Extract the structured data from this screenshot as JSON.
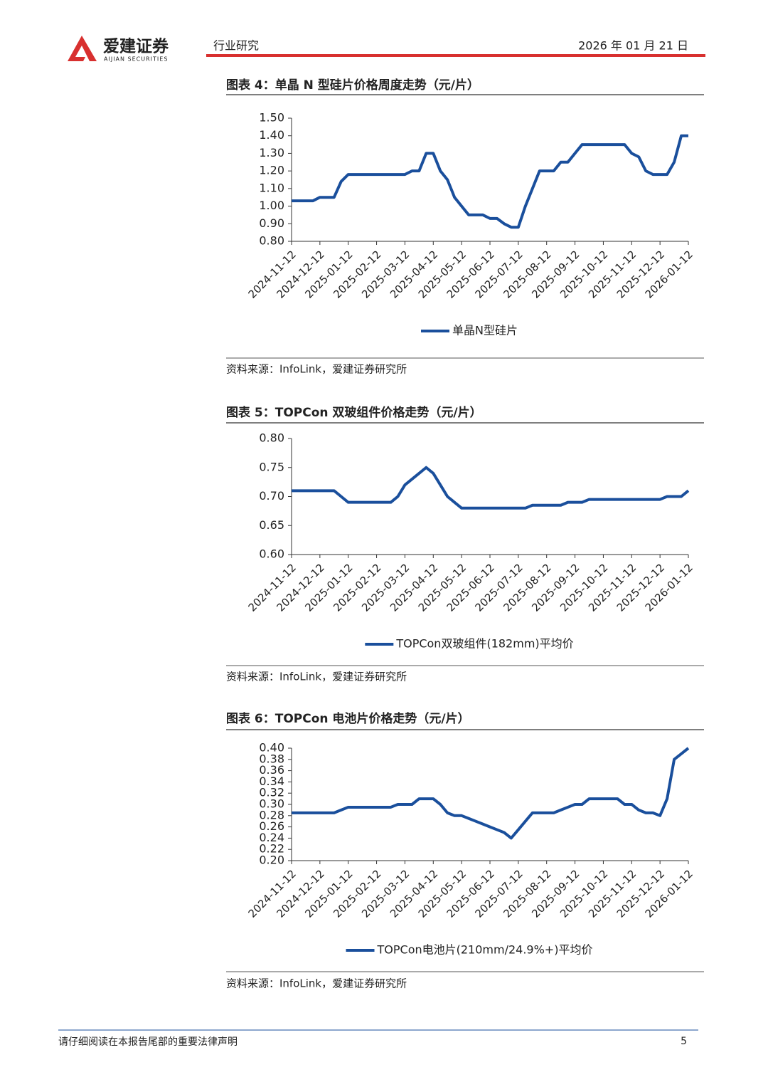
{
  "header": {
    "brand": "爱建证券",
    "brand_en": "AIJIAN SECURITIES",
    "section": "行业研究",
    "date": "2026 年 01 月 21 日"
  },
  "chart_data": [
    {
      "type": "line",
      "title": "图表 4：单晶 N 型硅片价格周度走势（元/片）",
      "categories": [
        "2024-11-12",
        null,
        null,
        null,
        "2024-12-12",
        null,
        null,
        null,
        "2025-01-12",
        null,
        null,
        null,
        "2025-02-12",
        null,
        null,
        null,
        "2025-03-12",
        null,
        null,
        null,
        "2025-04-12",
        null,
        null,
        null,
        "2025-05-12",
        null,
        null,
        null,
        "2025-06-12",
        null,
        null,
        null,
        "2025-07-12",
        null,
        null,
        null,
        "2025-08-12",
        null,
        null,
        null,
        "2025-09-12",
        null,
        null,
        null,
        "2025-10-12",
        null,
        null,
        null,
        "2025-11-12",
        null,
        null,
        null,
        "2025-12-12",
        null,
        null,
        null,
        "2026-01-12"
      ],
      "series": [
        {
          "name": "单晶N型硅片",
          "color": "#1a4f9c",
          "values": [
            1.03,
            1.03,
            1.03,
            1.03,
            1.05,
            1.05,
            1.05,
            1.14,
            1.18,
            1.18,
            1.18,
            1.18,
            1.18,
            1.18,
            1.18,
            1.18,
            1.18,
            1.2,
            1.2,
            1.3,
            1.3,
            1.2,
            1.15,
            1.05,
            1.0,
            0.95,
            0.95,
            0.95,
            0.93,
            0.93,
            0.9,
            0.88,
            0.88,
            1.0,
            1.1,
            1.2,
            1.2,
            1.2,
            1.25,
            1.25,
            1.3,
            1.35,
            1.35,
            1.35,
            1.35,
            1.35,
            1.35,
            1.35,
            1.3,
            1.28,
            1.2,
            1.18,
            1.18,
            1.18,
            1.25,
            1.4,
            1.4
          ]
        }
      ],
      "ylim": [
        0.8,
        1.5
      ],
      "yticks": [
        {
          "value": 0.8,
          "label": "0.80"
        },
        {
          "value": 0.9,
          "label": "0.90"
        },
        {
          "value": 1.0,
          "label": "1.00"
        },
        {
          "value": 1.1,
          "label": "1.10"
        },
        {
          "value": 1.2,
          "label": "1.20"
        },
        {
          "value": 1.3,
          "label": "1.30"
        },
        {
          "value": 1.4,
          "label": "1.40"
        },
        {
          "value": 1.5,
          "label": "1.50"
        }
      ],
      "legend": "bottom",
      "source": "资料来源：InfoLink，爱建证券研究所"
    },
    {
      "type": "line",
      "title": "图表 5：TOPCon 双玻组件价格走势（元/片）",
      "categories": [
        "2024-11-12",
        null,
        null,
        null,
        "2024-12-12",
        null,
        null,
        null,
        "2025-01-12",
        null,
        null,
        null,
        "2025-02-12",
        null,
        null,
        null,
        "2025-03-12",
        null,
        null,
        null,
        "2025-04-12",
        null,
        null,
        null,
        "2025-05-12",
        null,
        null,
        null,
        "2025-06-12",
        null,
        null,
        null,
        "2025-07-12",
        null,
        null,
        null,
        "2025-08-12",
        null,
        null,
        null,
        "2025-09-12",
        null,
        null,
        null,
        "2025-10-12",
        null,
        null,
        null,
        "2025-11-12",
        null,
        null,
        null,
        "2025-12-12",
        null,
        null,
        null,
        "2026-01-12"
      ],
      "series": [
        {
          "name": "TOPCon双玻组件(182mm)平均价",
          "color": "#1a4f9c",
          "values": [
            0.71,
            0.71,
            0.71,
            0.71,
            0.71,
            0.71,
            0.71,
            0.7,
            0.69,
            0.69,
            0.69,
            0.69,
            0.69,
            0.69,
            0.69,
            0.7,
            0.72,
            0.73,
            0.74,
            0.75,
            0.74,
            0.72,
            0.7,
            0.69,
            0.68,
            0.68,
            0.68,
            0.68,
            0.68,
            0.68,
            0.68,
            0.68,
            0.68,
            0.68,
            0.685,
            0.685,
            0.685,
            0.685,
            0.685,
            0.69,
            0.69,
            0.69,
            0.695,
            0.695,
            0.695,
            0.695,
            0.695,
            0.695,
            0.695,
            0.695,
            0.695,
            0.695,
            0.695,
            0.7,
            0.7,
            0.7,
            0.71
          ]
        }
      ],
      "ylim": [
        0.6,
        0.8
      ],
      "yticks": [
        {
          "value": 0.6,
          "label": "0.60"
        },
        {
          "value": 0.65,
          "label": "0.65"
        },
        {
          "value": 0.7,
          "label": "0.70"
        },
        {
          "value": 0.75,
          "label": "0.75"
        },
        {
          "value": 0.8,
          "label": "0.80"
        }
      ],
      "legend": "bottom",
      "source": "资料来源：InfoLink，爱建证券研究所"
    },
    {
      "type": "line",
      "title": "图表 6：TOPCon 电池片价格走势（元/片）",
      "categories": [
        "2024-11-12",
        null,
        null,
        null,
        "2024-12-12",
        null,
        null,
        null,
        "2025-01-12",
        null,
        null,
        null,
        "2025-02-12",
        null,
        null,
        null,
        "2025-03-12",
        null,
        null,
        null,
        "2025-04-12",
        null,
        null,
        null,
        "2025-05-12",
        null,
        null,
        null,
        "2025-06-12",
        null,
        null,
        null,
        "2025-07-12",
        null,
        null,
        null,
        "2025-08-12",
        null,
        null,
        null,
        "2025-09-12",
        null,
        null,
        null,
        "2025-10-12",
        null,
        null,
        null,
        "2025-11-12",
        null,
        null,
        null,
        "2025-12-12",
        null,
        null,
        null,
        "2026-01-12"
      ],
      "series": [
        {
          "name": "TOPCon电池片(210mm/24.9%+)平均价",
          "color": "#1a4f9c",
          "values": [
            0.285,
            0.285,
            0.285,
            0.285,
            0.285,
            0.285,
            0.285,
            0.29,
            0.295,
            0.295,
            0.295,
            0.295,
            0.295,
            0.295,
            0.295,
            0.3,
            0.3,
            0.3,
            0.31,
            0.31,
            0.31,
            0.3,
            0.285,
            0.28,
            0.28,
            0.275,
            0.27,
            0.265,
            0.26,
            0.255,
            0.25,
            0.24,
            0.255,
            0.27,
            0.285,
            0.285,
            0.285,
            0.285,
            0.29,
            0.295,
            0.3,
            0.3,
            0.31,
            0.31,
            0.31,
            0.31,
            0.31,
            0.3,
            0.3,
            0.29,
            0.285,
            0.285,
            0.28,
            0.31,
            0.38,
            0.39,
            0.4
          ]
        }
      ],
      "ylim": [
        0.2,
        0.4
      ],
      "yticks": [
        {
          "value": 0.2,
          "label": "0.20"
        },
        {
          "value": 0.22,
          "label": "0.22"
        },
        {
          "value": 0.24,
          "label": "0.24"
        },
        {
          "value": 0.26,
          "label": "0.26"
        },
        {
          "value": 0.28,
          "label": "0.28"
        },
        {
          "value": 0.3,
          "label": "0.30"
        },
        {
          "value": 0.32,
          "label": "0.32"
        },
        {
          "value": 0.34,
          "label": "0.34"
        },
        {
          "value": 0.36,
          "label": "0.36"
        },
        {
          "value": 0.38,
          "label": "0.38"
        },
        {
          "value": 0.4,
          "label": "0.40"
        }
      ],
      "legend": "bottom",
      "source": "资料来源：InfoLink，爱建证券研究所"
    }
  ],
  "footer": {
    "disclaimer": "请仔细阅读在本报告尾部的重要法律声明",
    "page": "5"
  }
}
